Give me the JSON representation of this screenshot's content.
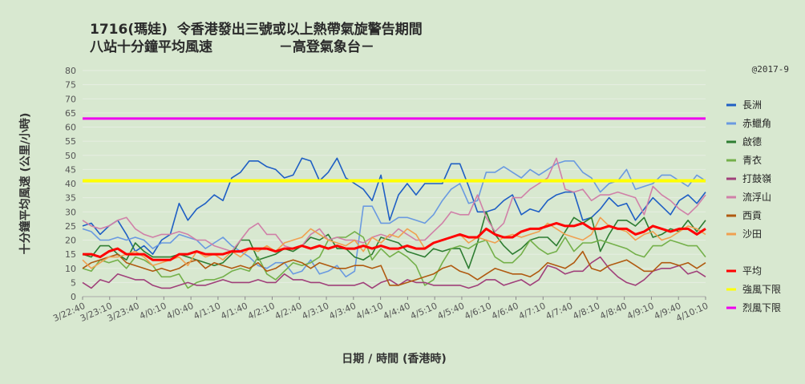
{
  "chart_data": {
    "type": "line",
    "title": "1716(瑪娃)  令香港發出三號或以上熱帶氣旋警告期間",
    "subtitle": "八站十分鐘平均風速              －高登氣象台－",
    "credit": "@2017-9",
    "xlabel": "日期 / 時間 (香港時)",
    "ylabel": "十分鐘平均風速 (公里/小時)",
    "ylim": [
      0,
      80
    ],
    "yticks": [
      0,
      5,
      10,
      15,
      20,
      25,
      30,
      35,
      40,
      45,
      50,
      55,
      60,
      65,
      70,
      75,
      80
    ],
    "xticks": [
      "3/22:40",
      "3/23:10",
      "3/23:40",
      "4/0:10",
      "4/0:40",
      "4/1:10",
      "4/1:40",
      "4/2:10",
      "4/2:40",
      "4/3:10",
      "4/3:40",
      "4/4:10",
      "4/4:40",
      "4/5:10",
      "4/5:40",
      "4/6:10",
      "4/6:40",
      "4/7:10",
      "4/7:40",
      "4/8:10",
      "4/8:40",
      "4/9:10",
      "4/9:40",
      "4/10:10"
    ],
    "grid": true,
    "legend_position": "right",
    "series": [
      {
        "name": "長洲",
        "color": "#1f5fc4",
        "values": [
          25,
          26,
          22,
          25,
          27,
          22,
          16,
          18,
          15,
          20,
          22,
          33,
          27,
          31,
          33,
          36,
          34,
          42,
          44,
          48,
          48,
          46,
          45,
          42,
          43,
          49,
          48,
          41,
          44,
          49,
          42,
          40,
          38,
          34,
          43,
          27,
          36,
          40,
          36,
          40,
          40,
          40,
          47,
          47,
          39,
          30,
          30,
          31,
          34,
          36,
          29,
          31,
          30,
          34,
          36,
          37,
          37,
          27,
          28,
          31,
          35,
          32,
          33,
          27,
          31,
          35,
          32,
          29,
          34,
          36,
          33,
          37
        ]
      },
      {
        "name": "赤鱲角",
        "color": "#6a9ae0",
        "values": [
          24,
          23,
          20,
          20,
          21,
          20,
          21,
          20,
          17,
          19,
          19,
          22,
          21,
          20,
          17,
          19,
          21,
          18,
          16,
          14,
          11,
          10,
          12,
          12,
          8,
          9,
          13,
          8,
          9,
          11,
          7,
          9,
          32,
          32,
          26,
          26,
          28,
          28,
          27,
          26,
          29,
          34,
          38,
          40,
          33,
          34,
          44,
          44,
          46,
          44,
          42,
          45,
          43,
          45,
          47,
          48,
          48,
          44,
          42,
          37,
          40,
          41,
          45,
          38,
          39,
          40,
          43,
          43,
          41,
          39,
          43,
          41
        ]
      },
      {
        "name": "啟德",
        "color": "#2e7d32",
        "values": [
          15,
          14,
          18,
          18,
          15,
          13,
          19,
          16,
          14,
          14,
          14,
          15,
          14,
          13,
          12,
          11,
          12,
          15,
          20,
          20,
          13,
          14,
          15,
          17,
          16,
          18,
          21,
          20,
          22,
          17,
          17,
          14,
          13,
          15,
          21,
          20,
          19,
          16,
          15,
          14,
          17,
          16,
          17,
          17,
          10,
          19,
          30,
          22,
          18,
          15,
          17,
          20,
          21,
          21,
          18,
          23,
          28,
          26,
          28,
          16,
          22,
          27,
          27,
          25,
          28,
          21,
          22,
          24,
          23,
          27,
          23,
          27
        ]
      },
      {
        "name": "青衣",
        "color": "#74b04a",
        "values": [
          10,
          9,
          13,
          12,
          13,
          10,
          14,
          13,
          11,
          7,
          7,
          8,
          3,
          5,
          6,
          6,
          7,
          9,
          10,
          9,
          14,
          8,
          6,
          9,
          12,
          11,
          12,
          14,
          20,
          21,
          21,
          23,
          21,
          13,
          17,
          14,
          16,
          14,
          11,
          4,
          6,
          12,
          17,
          18,
          17,
          19,
          20,
          14,
          12,
          12,
          15,
          20,
          17,
          15,
          16,
          21,
          16,
          19,
          19,
          20,
          19,
          18,
          17,
          15,
          14,
          18,
          18,
          20,
          19,
          18,
          18,
          14
        ]
      },
      {
        "name": "打鼓嶺",
        "color": "#a0407a",
        "values": [
          5,
          3,
          6,
          5,
          8,
          7,
          6,
          6,
          4,
          3,
          3,
          4,
          5,
          4,
          4,
          5,
          6,
          5,
          5,
          5,
          6,
          5,
          5,
          8,
          6,
          6,
          5,
          5,
          4,
          4,
          4,
          4,
          5,
          3,
          5,
          6,
          4,
          6,
          5,
          5,
          4,
          4,
          4,
          4,
          3,
          4,
          6,
          6,
          4,
          5,
          6,
          4,
          6,
          11,
          10,
          8,
          9,
          9,
          12,
          14,
          10,
          7,
          5,
          4,
          6,
          9,
          10,
          10,
          11,
          8,
          9,
          7
        ]
      },
      {
        "name": "流浮山",
        "color": "#d080a8",
        "values": [
          27,
          25,
          24,
          25,
          27,
          28,
          24,
          22,
          21,
          22,
          22,
          23,
          22,
          20,
          20,
          18,
          17,
          16,
          20,
          24,
          26,
          22,
          22,
          18,
          17,
          18,
          22,
          24,
          20,
          21,
          20,
          20,
          19,
          21,
          22,
          21,
          24,
          22,
          20,
          20,
          23,
          26,
          30,
          29,
          29,
          36,
          28,
          23,
          26,
          35,
          35,
          38,
          40,
          42,
          49,
          38,
          37,
          38,
          34,
          36,
          36,
          37,
          36,
          35,
          29,
          39,
          36,
          34,
          31,
          29,
          32,
          36
        ]
      },
      {
        "name": "西貢",
        "color": "#b05a10",
        "values": [
          10,
          12,
          13,
          14,
          15,
          12,
          11,
          10,
          9,
          10,
          9,
          10,
          12,
          13,
          10,
          12,
          11,
          10,
          11,
          10,
          12,
          9,
          10,
          12,
          13,
          12,
          10,
          12,
          11,
          10,
          10,
          11,
          11,
          10,
          11,
          4,
          4,
          5,
          6,
          7,
          8,
          10,
          11,
          9,
          8,
          6,
          8,
          10,
          9,
          8,
          8,
          7,
          9,
          12,
          11,
          10,
          12,
          16,
          10,
          9,
          11,
          12,
          13,
          11,
          9,
          9,
          12,
          12,
          11,
          12,
          10,
          12
        ]
      },
      {
        "name": "沙田",
        "color": "#f0a050",
        "values": [
          13,
          10,
          12,
          14,
          14,
          15,
          16,
          14,
          11,
          12,
          13,
          14,
          11,
          16,
          14,
          15,
          13,
          16,
          14,
          17,
          16,
          18,
          16,
          19,
          20,
          21,
          24,
          22,
          20,
          19,
          18,
          20,
          16,
          21,
          19,
          22,
          21,
          24,
          22,
          17,
          19,
          20,
          21,
          22,
          19,
          21,
          20,
          19,
          21,
          22,
          21,
          22,
          23,
          26,
          24,
          22,
          21,
          20,
          22,
          28,
          25,
          24,
          23,
          20,
          22,
          23,
          20,
          21,
          23,
          25,
          24,
          22
        ]
      },
      {
        "name": "平均",
        "color": "#ff0000",
        "width": 3,
        "values": [
          15,
          15,
          14,
          16,
          17,
          15,
          15,
          15,
          13,
          13,
          13,
          15,
          15,
          16,
          15,
          15,
          15,
          16,
          16,
          17,
          17,
          17,
          16,
          17,
          17,
          18,
          17,
          18,
          17,
          18,
          17,
          17,
          18,
          17,
          18,
          17,
          17,
          18,
          17,
          17,
          19,
          20,
          21,
          22,
          21,
          21,
          24,
          22,
          21,
          21,
          23,
          24,
          24,
          25,
          26,
          25,
          25,
          26,
          24,
          24,
          25,
          24,
          24,
          22,
          23,
          25,
          24,
          23,
          24,
          24,
          22,
          24
        ]
      },
      {
        "name": "強風下限",
        "color": "#ffff00",
        "width": 4,
        "values": [
          41,
          41
        ]
      },
      {
        "name": "烈風下限",
        "color": "#ee00ee",
        "width": 3,
        "values": [
          63,
          63
        ]
      }
    ]
  }
}
